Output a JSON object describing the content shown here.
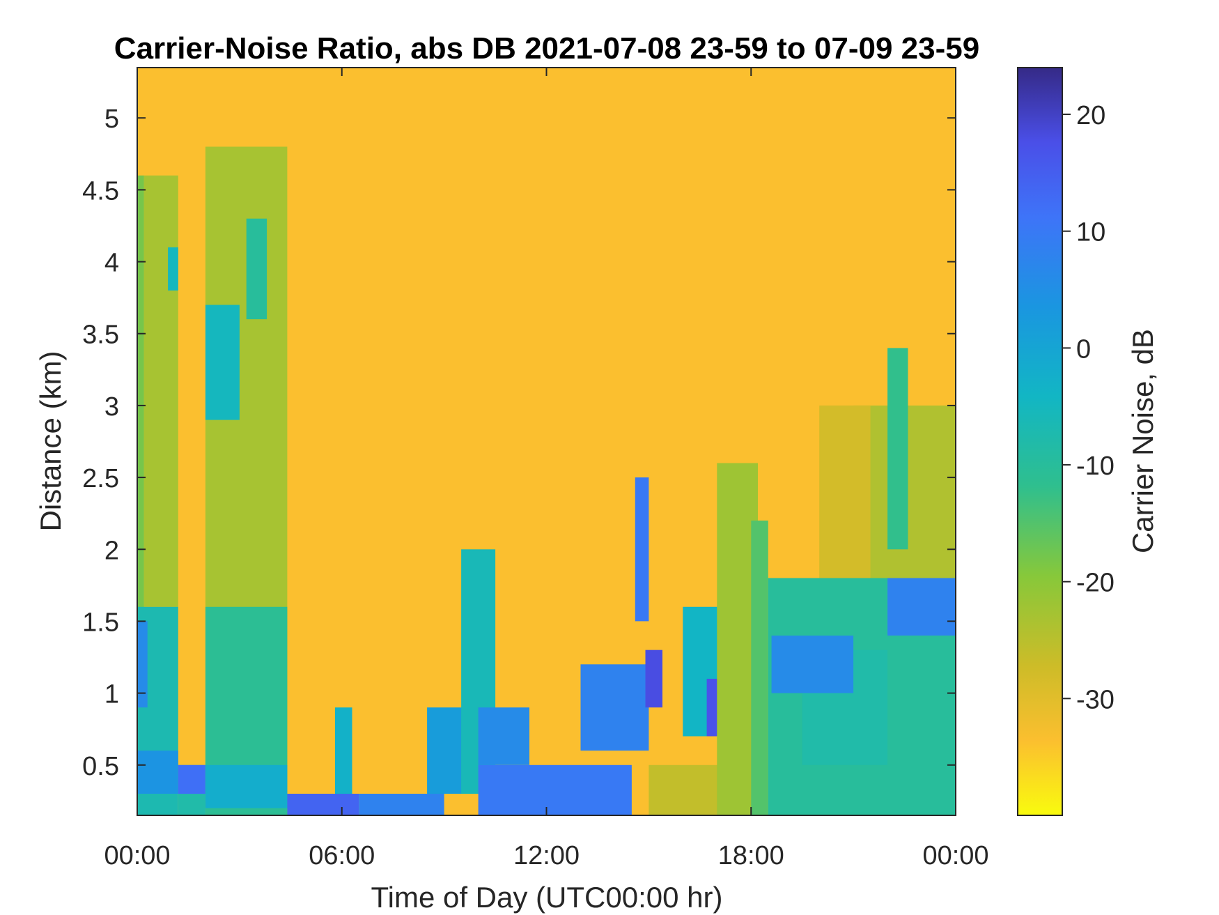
{
  "chart_data": {
    "type": "heatmap",
    "title": "Carrier-Noise Ratio, abs DB 2021-07-08 23-59 to 07-09 23-59",
    "xlabel": "Time of Day (UTC00:00 hr)",
    "ylabel": "Distance (km)",
    "colorbar_label": "Carrier Noise, dB",
    "xlim": [
      0,
      24
    ],
    "ylim": [
      0.15,
      5.35
    ],
    "clim": [
      -40,
      24
    ],
    "colormap": "parula (reversed)",
    "colors": {
      "low": "#f9fb0e",
      "mid_low": "#fbbf2f",
      "mid": "#12b6c4",
      "high": "#4464f6",
      "top": "#352a87"
    },
    "x_ticks": [
      0,
      6,
      12,
      18,
      24
    ],
    "x_tick_labels": [
      "00:00",
      "06:00",
      "12:00",
      "18:00",
      "00:00"
    ],
    "y_ticks": [
      0.5,
      1,
      1.5,
      2,
      2.5,
      3,
      3.5,
      4,
      4.5,
      5
    ],
    "y_tick_labels": [
      "0.5",
      "1",
      "1.5",
      "2",
      "2.5",
      "3",
      "3.5",
      "4",
      "4.5",
      "5"
    ],
    "c_ticks": [
      -30,
      -20,
      -10,
      0,
      10,
      20
    ],
    "c_tick_labels": [
      "-30",
      "-20",
      "-10",
      "0",
      "10",
      "20"
    ],
    "background_value": -32,
    "regions": [
      {
        "t": [
          0.0,
          0.2
        ],
        "d": [
          0.15,
          4.6
        ],
        "v": -18
      },
      {
        "t": [
          0.2,
          1.2
        ],
        "d": [
          1.6,
          4.6
        ],
        "v": -23
      },
      {
        "t": [
          0.9,
          1.2
        ],
        "d": [
          3.8,
          4.1
        ],
        "v": -5
      },
      {
        "t": [
          0.0,
          1.2
        ],
        "d": [
          0.15,
          1.6
        ],
        "v": -7
      },
      {
        "t": [
          0.0,
          0.3
        ],
        "d": [
          0.9,
          1.5
        ],
        "v": 6
      },
      {
        "t": [
          0.0,
          1.2
        ],
        "d": [
          0.3,
          0.6
        ],
        "v": 4
      },
      {
        "t": [
          1.2,
          2.0
        ],
        "d": [
          0.15,
          0.5
        ],
        "v": -8
      },
      {
        "t": [
          1.2,
          2.0
        ],
        "d": [
          0.3,
          0.5
        ],
        "v": 12
      },
      {
        "t": [
          2.0,
          4.4
        ],
        "d": [
          0.15,
          4.8
        ],
        "v": -23
      },
      {
        "t": [
          2.0,
          3.0
        ],
        "d": [
          2.9,
          3.7
        ],
        "v": -5
      },
      {
        "t": [
          3.2,
          3.8
        ],
        "d": [
          3.6,
          4.3
        ],
        "v": -10
      },
      {
        "t": [
          2.0,
          4.4
        ],
        "d": [
          0.15,
          1.6
        ],
        "v": -11
      },
      {
        "t": [
          2.0,
          4.4
        ],
        "d": [
          0.2,
          0.5
        ],
        "v": -2
      },
      {
        "t": [
          4.4,
          6.5
        ],
        "d": [
          0.15,
          0.3
        ],
        "v": 14
      },
      {
        "t": [
          5.8,
          6.3
        ],
        "d": [
          0.3,
          0.9
        ],
        "v": -3
      },
      {
        "t": [
          6.5,
          9.0
        ],
        "d": [
          0.15,
          0.3
        ],
        "v": 8
      },
      {
        "t": [
          8.5,
          10.0
        ],
        "d": [
          0.3,
          0.9
        ],
        "v": 2
      },
      {
        "t": [
          9.5,
          10.5
        ],
        "d": [
          0.3,
          2.0
        ],
        "v": -6
      },
      {
        "t": [
          10.0,
          14.5
        ],
        "d": [
          0.15,
          0.5
        ],
        "v": 10
      },
      {
        "t": [
          10.0,
          11.5
        ],
        "d": [
          0.5,
          0.9
        ],
        "v": 6
      },
      {
        "t": [
          13.0,
          15.0
        ],
        "d": [
          0.6,
          1.2
        ],
        "v": 8
      },
      {
        "t": [
          14.6,
          15.0
        ],
        "d": [
          1.5,
          2.5
        ],
        "v": 10
      },
      {
        "t": [
          14.9,
          15.4
        ],
        "d": [
          0.9,
          1.3
        ],
        "v": 18
      },
      {
        "t": [
          15.0,
          18.5
        ],
        "d": [
          0.15,
          0.5
        ],
        "v": -26
      },
      {
        "t": [
          16.0,
          17.5
        ],
        "d": [
          0.7,
          1.6
        ],
        "v": -4
      },
      {
        "t": [
          16.7,
          17.2
        ],
        "d": [
          0.7,
          1.1
        ],
        "v": 17
      },
      {
        "t": [
          17.0,
          18.2
        ],
        "d": [
          0.15,
          2.6
        ],
        "v": -22
      },
      {
        "t": [
          18.0,
          18.5
        ],
        "d": [
          0.15,
          2.2
        ],
        "v": -15
      },
      {
        "t": [
          18.5,
          24.0
        ],
        "d": [
          0.15,
          1.8
        ],
        "v": -10
      },
      {
        "t": [
          19.5,
          22.0
        ],
        "d": [
          0.5,
          1.3
        ],
        "v": -8
      },
      {
        "t": [
          18.6,
          21.0
        ],
        "d": [
          1.0,
          1.4
        ],
        "v": 6
      },
      {
        "t": [
          22.0,
          24.0
        ],
        "d": [
          1.4,
          1.8
        ],
        "v": 8
      },
      {
        "t": [
          21.0,
          24.0
        ],
        "d": [
          1.8,
          3.0
        ],
        "v": -24
      },
      {
        "t": [
          20.0,
          21.5
        ],
        "d": [
          1.8,
          3.0
        ],
        "v": -28
      },
      {
        "t": [
          22.0,
          22.6
        ],
        "d": [
          2.0,
          3.4
        ],
        "v": -12
      }
    ]
  }
}
